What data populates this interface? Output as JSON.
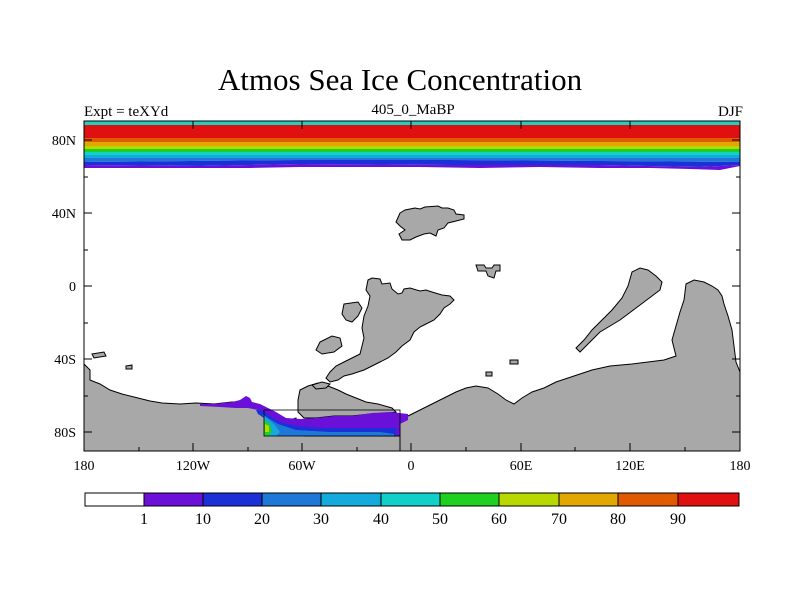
{
  "title": "Atmos Sea Ice Concentration",
  "left_label": "Expt = teXYd",
  "center_label": "405_0_MaBP",
  "right_label": "DJF",
  "y_ticks": [
    "80N",
    "40N",
    "0",
    "40S",
    "80S"
  ],
  "x_ticks": [
    "180",
    "120W",
    "60W",
    "0",
    "60E",
    "120E",
    "180"
  ],
  "colorbar": {
    "labels": [
      "1",
      "10",
      "20",
      "30",
      "40",
      "50",
      "60",
      "70",
      "80",
      "90"
    ],
    "colors": [
      "#ffffff",
      "#6a10d8",
      "#1c30d8",
      "#1e78d8",
      "#14aadc",
      "#10d0c8",
      "#20d020",
      "#b8d800",
      "#e0a800",
      "#e05a00",
      "#e01010"
    ]
  },
  "colors": {
    "land": "#a8a8a8",
    "ocean": "#ffffff"
  }
}
